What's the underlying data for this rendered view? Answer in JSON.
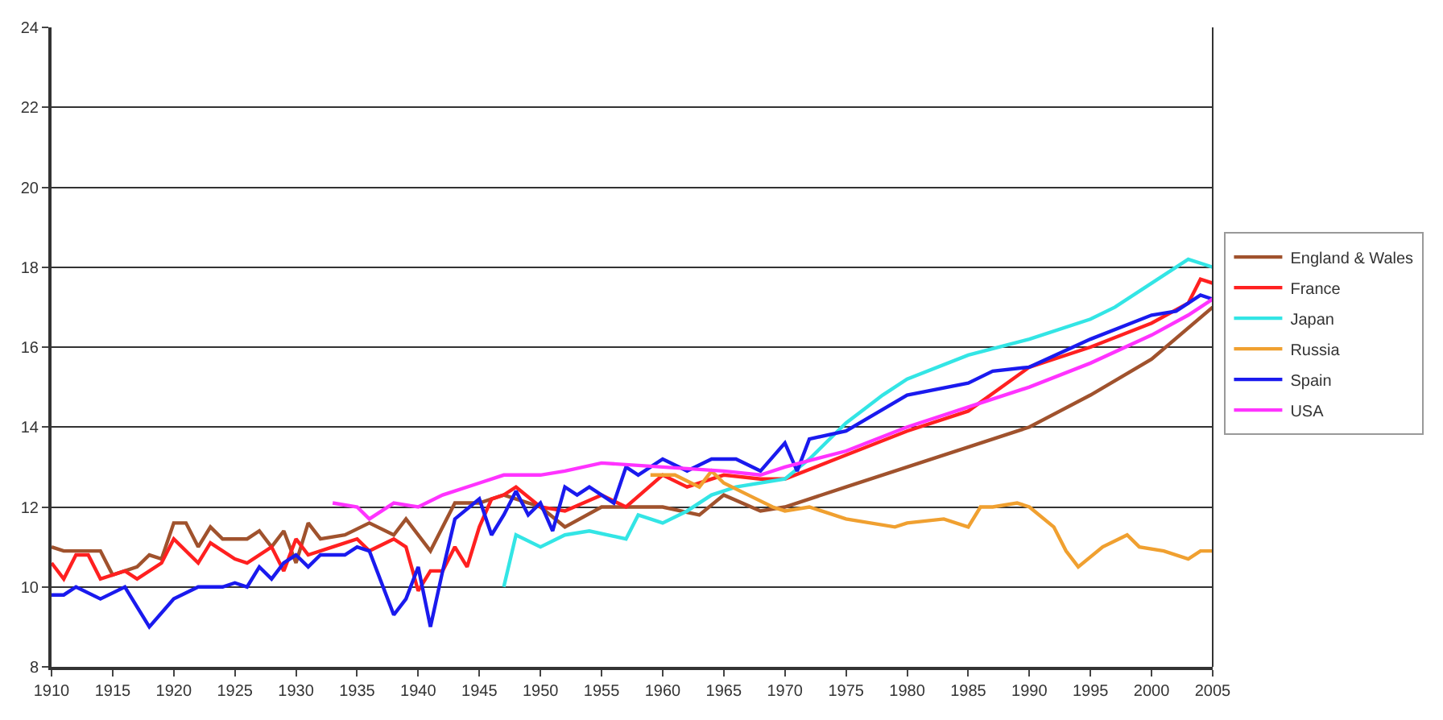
{
  "chart_data": {
    "type": "line",
    "xlim": [
      1910,
      2005
    ],
    "xticks": [
      1910,
      1915,
      1920,
      1925,
      1930,
      1935,
      1940,
      1945,
      1950,
      1955,
      1960,
      1965,
      1970,
      1975,
      1980,
      1985,
      1990,
      1995,
      2000,
      2005
    ],
    "ylim": [
      8,
      24
    ],
    "yticks": [
      8,
      10,
      12,
      14,
      16,
      18,
      20,
      22,
      24
    ],
    "grid": "y",
    "legend": "right",
    "line_style": "solid",
    "marker": "none",
    "series": [
      {
        "name": "England & Wales",
        "color": "#a0522d",
        "x": [
          1910,
          1911,
          1914,
          1915,
          1917,
          1918,
          1919,
          1920,
          1921,
          1922,
          1923,
          1924,
          1926,
          1927,
          1928,
          1929,
          1930,
          1931,
          1932,
          1934,
          1936,
          1938,
          1939,
          1941,
          1943,
          1945,
          1947,
          1950,
          1952,
          1955,
          1960,
          1963,
          1965,
          1968,
          1970,
          1972,
          1975,
          1980,
          1985,
          1990,
          1995,
          2000,
          2005
        ],
        "values": [
          11.0,
          10.9,
          10.9,
          10.3,
          10.5,
          10.8,
          10.7,
          11.6,
          11.6,
          11.0,
          11.5,
          11.2,
          11.2,
          11.4,
          11.0,
          11.4,
          10.6,
          11.6,
          11.2,
          11.3,
          11.6,
          11.3,
          11.7,
          10.9,
          12.1,
          12.1,
          12.3,
          12.0,
          11.5,
          12.0,
          12.0,
          11.8,
          12.3,
          11.9,
          12.0,
          12.2,
          12.5,
          13.0,
          13.5,
          14.0,
          14.8,
          15.7,
          17.0
        ]
      },
      {
        "name": "France",
        "color": "#ff2020",
        "x": [
          1910,
          1911,
          1912,
          1913,
          1914,
          1916,
          1917,
          1919,
          1920,
          1922,
          1923,
          1925,
          1926,
          1928,
          1929,
          1930,
          1931,
          1933,
          1935,
          1936,
          1938,
          1939,
          1940,
          1941,
          1942,
          1943,
          1944,
          1945,
          1946,
          1947,
          1948,
          1950,
          1952,
          1955,
          1957,
          1960,
          1962,
          1965,
          1968,
          1970,
          1975,
          1980,
          1985,
          1990,
          1995,
          2000,
          2003,
          2004,
          2005
        ],
        "values": [
          10.6,
          10.2,
          10.8,
          10.8,
          10.2,
          10.4,
          10.2,
          10.6,
          11.2,
          10.6,
          11.1,
          10.7,
          10.6,
          11.0,
          10.4,
          11.2,
          10.8,
          11.0,
          11.2,
          10.9,
          11.2,
          11.0,
          9.9,
          10.4,
          10.4,
          11.0,
          10.5,
          11.5,
          12.2,
          12.3,
          12.5,
          12.0,
          11.9,
          12.3,
          12.0,
          12.8,
          12.5,
          12.8,
          12.7,
          12.7,
          13.3,
          13.9,
          14.4,
          15.5,
          16.0,
          16.6,
          17.1,
          17.7,
          17.6
        ]
      },
      {
        "name": "Japan",
        "color": "#33e5e5",
        "x": [
          1947,
          1948,
          1950,
          1952,
          1954,
          1957,
          1958,
          1960,
          1962,
          1964,
          1966,
          1970,
          1972,
          1975,
          1978,
          1980,
          1985,
          1990,
          1995,
          1997,
          2000,
          2003,
          2005
        ],
        "values": [
          10.0,
          11.3,
          11.0,
          11.3,
          11.4,
          11.2,
          11.8,
          11.6,
          11.9,
          12.3,
          12.5,
          12.7,
          13.2,
          14.1,
          14.8,
          15.2,
          15.8,
          16.2,
          16.7,
          17.0,
          17.6,
          18.2,
          18.0
        ]
      },
      {
        "name": "Russia",
        "color": "#f0a030",
        "x": [
          1959,
          1961,
          1963,
          1964,
          1965,
          1967,
          1969,
          1970,
          1972,
          1973,
          1975,
          1979,
          1980,
          1983,
          1985,
          1986,
          1987,
          1989,
          1990,
          1992,
          1993,
          1994,
          1996,
          1998,
          1999,
          2001,
          2003,
          2004,
          2005
        ],
        "values": [
          12.8,
          12.8,
          12.5,
          12.9,
          12.6,
          12.3,
          12.0,
          11.9,
          12.0,
          11.9,
          11.7,
          11.5,
          11.6,
          11.7,
          11.5,
          12.0,
          12.0,
          12.1,
          12.0,
          11.5,
          10.9,
          10.5,
          11.0,
          11.3,
          11.0,
          10.9,
          10.7,
          10.9,
          10.9
        ]
      },
      {
        "name": "Spain",
        "color": "#1a1aee",
        "x": [
          1910,
          1911,
          1912,
          1914,
          1916,
          1918,
          1920,
          1922,
          1924,
          1925,
          1926,
          1927,
          1928,
          1929,
          1930,
          1931,
          1932,
          1934,
          1935,
          1936,
          1938,
          1939,
          1940,
          1941,
          1942,
          1943,
          1945,
          1946,
          1947,
          1948,
          1949,
          1950,
          1951,
          1952,
          1953,
          1954,
          1956,
          1957,
          1958,
          1960,
          1962,
          1964,
          1966,
          1968,
          1970,
          1971,
          1972,
          1975,
          1980,
          1985,
          1987,
          1990,
          1995,
          2000,
          2002,
          2004,
          2005
        ],
        "values": [
          9.8,
          9.8,
          10.0,
          9.7,
          10.0,
          9.0,
          9.7,
          10.0,
          10.0,
          10.1,
          10.0,
          10.5,
          10.2,
          10.6,
          10.8,
          10.5,
          10.8,
          10.8,
          11.0,
          10.9,
          9.3,
          9.7,
          10.5,
          9.0,
          10.4,
          11.7,
          12.2,
          11.3,
          11.8,
          12.4,
          11.8,
          12.1,
          11.4,
          12.5,
          12.3,
          12.5,
          12.1,
          13.0,
          12.8,
          13.2,
          12.9,
          13.2,
          13.2,
          12.9,
          13.6,
          12.9,
          13.7,
          13.9,
          14.8,
          15.1,
          15.4,
          15.5,
          16.2,
          16.8,
          16.9,
          17.3,
          17.2
        ]
      },
      {
        "name": "USA",
        "color": "#ff33ff",
        "x": [
          1933,
          1935,
          1936,
          1938,
          1940,
          1942,
          1945,
          1947,
          1950,
          1952,
          1955,
          1960,
          1965,
          1968,
          1970,
          1975,
          1980,
          1985,
          1990,
          1995,
          2000,
          2003,
          2005
        ],
        "values": [
          12.1,
          12.0,
          11.7,
          12.1,
          12.0,
          12.3,
          12.6,
          12.8,
          12.8,
          12.9,
          13.1,
          13.0,
          12.9,
          12.8,
          13.0,
          13.4,
          14.0,
          14.5,
          15.0,
          15.6,
          16.3,
          16.8,
          17.2
        ]
      }
    ]
  }
}
